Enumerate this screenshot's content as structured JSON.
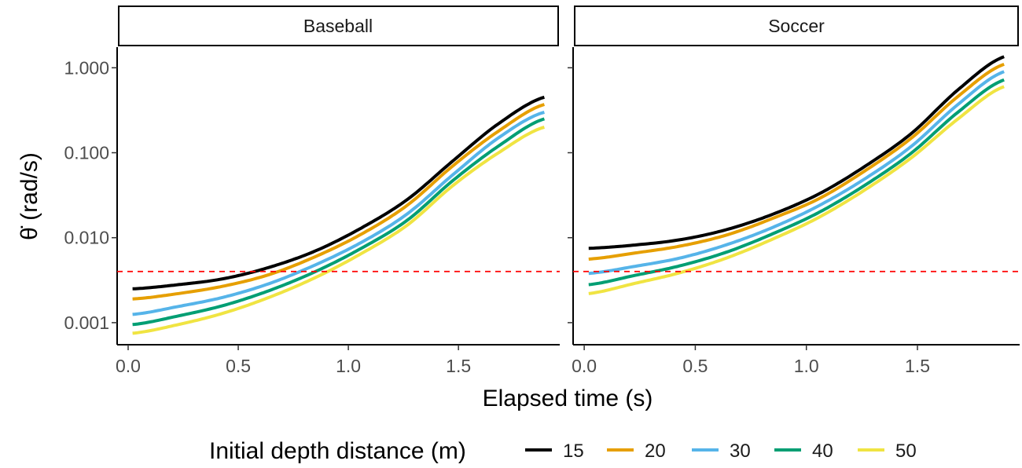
{
  "chart_data": {
    "type": "line",
    "facets": [
      "Baseball",
      "Soccer"
    ],
    "xlabel": "Elapsed time (s)",
    "ylabel": "θ̇ (rad/s)",
    "y_scale": "log10",
    "xlim": [
      -0.05,
      1.96
    ],
    "ylim": [
      0.00055,
      1.75
    ],
    "x_ticks": [
      0.0,
      0.5,
      1.0,
      1.5
    ],
    "x_tick_labels": [
      "0.0",
      "0.5",
      "1.0",
      "1.5"
    ],
    "y_ticks": [
      0.001,
      0.01,
      0.1,
      1.0
    ],
    "y_tick_labels": [
      "0.001",
      "0.010",
      "0.100",
      "1.000"
    ],
    "reference_line": {
      "y": 0.004,
      "style": "dashed",
      "color": "#ff0000"
    },
    "legend_title": "Initial depth distance (m)",
    "legend_position": "bottom",
    "x_range": [
      0.02,
      1.89
    ],
    "series": [
      {
        "name": "15",
        "color": "#000000",
        "baseball": [
          0.0025,
          0.0028,
          0.0033,
          0.0045,
          0.007,
          0.013,
          0.028,
          0.08,
          0.22,
          0.45
        ],
        "soccer": [
          0.0075,
          0.0082,
          0.0095,
          0.0125,
          0.019,
          0.033,
          0.07,
          0.17,
          0.55,
          1.35
        ]
      },
      {
        "name": "20",
        "color": "#E69F00",
        "baseball": [
          0.0019,
          0.0022,
          0.0027,
          0.0037,
          0.006,
          0.011,
          0.024,
          0.07,
          0.18,
          0.37
        ],
        "soccer": [
          0.0056,
          0.0066,
          0.008,
          0.0108,
          0.017,
          0.029,
          0.062,
          0.15,
          0.46,
          1.1
        ]
      },
      {
        "name": "30",
        "color": "#56B4E9",
        "baseball": [
          0.00125,
          0.00155,
          0.002,
          0.0029,
          0.0048,
          0.0088,
          0.019,
          0.055,
          0.15,
          0.3
        ],
        "soccer": [
          0.0038,
          0.0046,
          0.0058,
          0.0083,
          0.0133,
          0.024,
          0.05,
          0.12,
          0.37,
          0.9
        ]
      },
      {
        "name": "40",
        "color": "#009E73",
        "baseball": [
          0.00095,
          0.0012,
          0.0016,
          0.0024,
          0.004,
          0.0075,
          0.016,
          0.047,
          0.12,
          0.25
        ],
        "soccer": [
          0.0028,
          0.0036,
          0.0047,
          0.0068,
          0.0112,
          0.02,
          0.042,
          0.1,
          0.3,
          0.72
        ]
      },
      {
        "name": "50",
        "color": "#F0E442",
        "baseball": [
          0.00075,
          0.00095,
          0.0013,
          0.002,
          0.0034,
          0.0065,
          0.014,
          0.041,
          0.1,
          0.2
        ],
        "soccer": [
          0.0022,
          0.0029,
          0.0039,
          0.0058,
          0.0097,
          0.0175,
          0.037,
          0.088,
          0.25,
          0.6
        ]
      }
    ]
  }
}
